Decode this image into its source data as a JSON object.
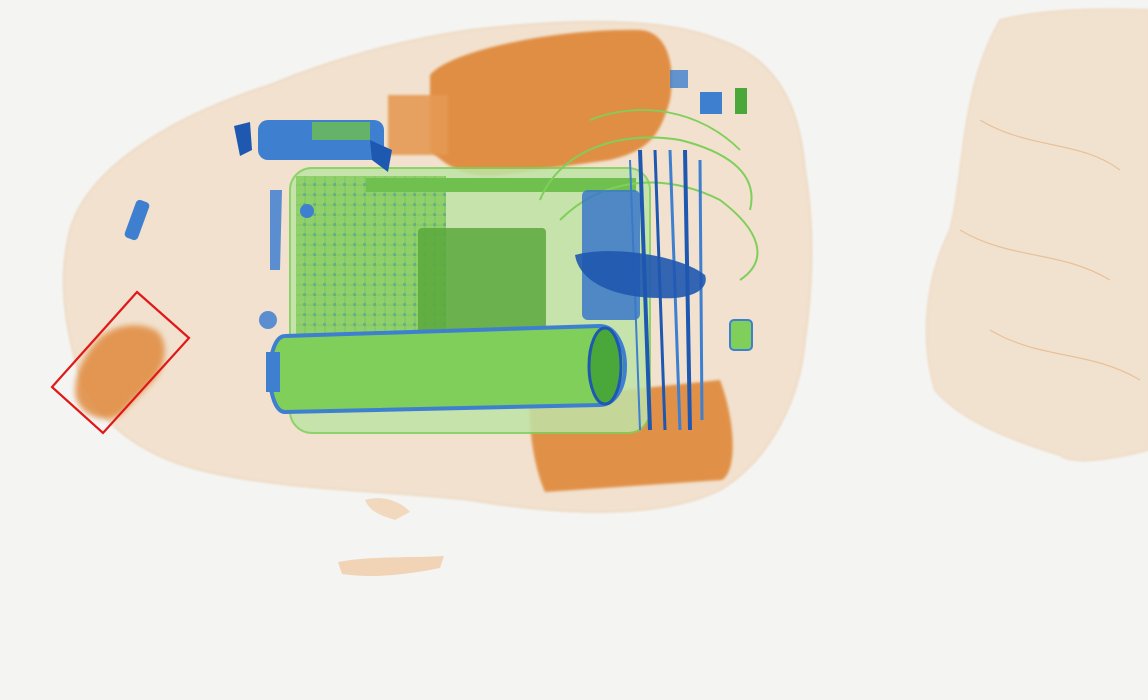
{
  "image": {
    "kind": "x-ray baggage scan",
    "background": "#f4f5f3",
    "palette": {
      "organic": "#e08a3c",
      "organic_light": "#f0c49a",
      "mixed": "#7fcf5a",
      "mixed_dark": "#4aa83a",
      "inorganic": "#3f7fd0",
      "inorganic_dark": "#1f58b0",
      "annotation": "#e01818"
    },
    "annotation": {
      "shape": "rotated-rectangle",
      "label": ""
    }
  }
}
